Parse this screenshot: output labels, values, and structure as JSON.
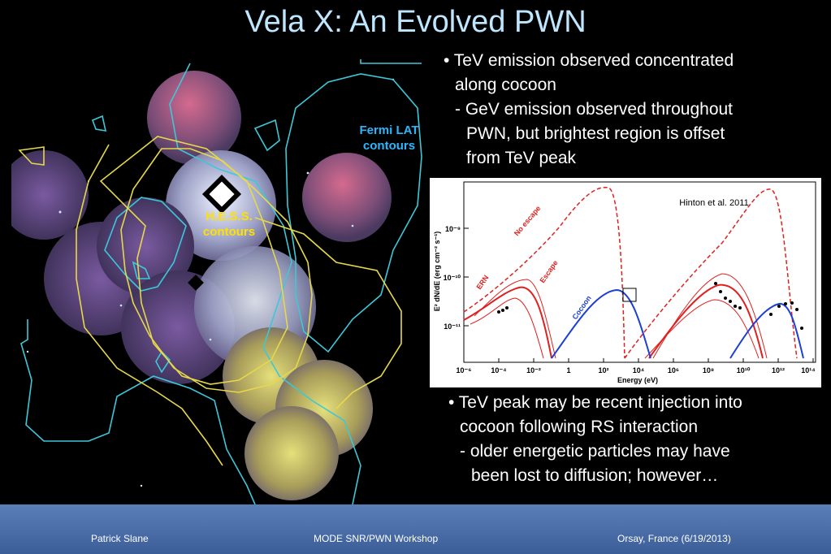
{
  "slide": {
    "title": "Vela X: An Evolved PWN",
    "image_labels": {
      "fermi_line1": "Fermi LAT",
      "fermi_line2": "contours",
      "hess_line1": "H.E.S.S.",
      "hess_line2": "contours"
    },
    "bullets_top": [
      "• TeV emission observed concentrated",
      "   along cocoon",
      "   - GeV emission observed throughout",
      "     PWN, but brightest region is offset",
      "     from TeV peak"
    ],
    "bullets_bottom": [
      "• TeV peak may be recent injection into",
      "   cocoon following RS interaction",
      "   - older energetic particles may have",
      "     been lost to diffusion; however…"
    ]
  },
  "plot": {
    "citation": "Hinton et al. 2011",
    "ylabel": "E² dN/dE (erg cm⁻² s⁻¹)",
    "xlabel": "Energy (eV)",
    "xticks": [
      "10⁻⁶",
      "10⁻⁴",
      "10⁻²",
      "1",
      "10²",
      "10⁴",
      "10⁶",
      "10⁸",
      "10¹⁰",
      "10¹²",
      "10¹⁴"
    ],
    "yticks": [
      "10⁻⁹",
      "10⁻¹⁰",
      "10⁻¹¹"
    ],
    "curve_labels": {
      "no_escape": "No escape",
      "escape": "Escape",
      "cocoon": "Cocoon",
      "ern": "ERN"
    },
    "colors": {
      "red": "#e0201e",
      "blue": "#1c3fd6"
    }
  },
  "footer": {
    "author": "Patrick Slane",
    "event": "MODE SNR/PWN Workshop",
    "place_date": "Orsay, France  (6/19/2013)"
  }
}
